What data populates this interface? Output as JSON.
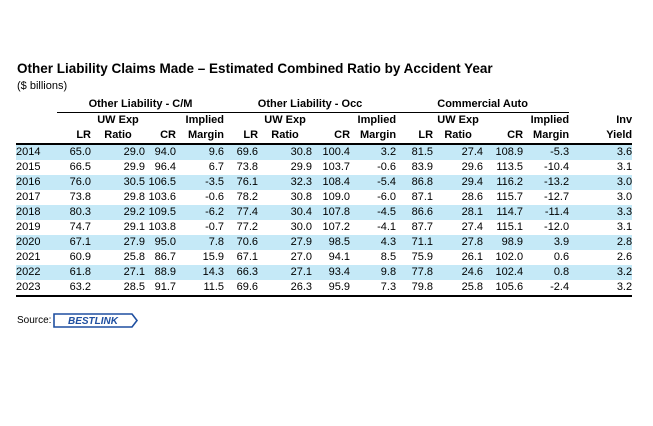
{
  "title": "Other Liability Claims Made – Estimated Combined Ratio by Accident Year",
  "subtitle": "($ billions)",
  "groups": {
    "g1": "Other Liability - C/M",
    "g2": "Other Liability - Occ",
    "g3": "Commercial Auto"
  },
  "headers": {
    "top": {
      "uw": "UW Exp",
      "implied": "Implied",
      "inv": "Inv"
    },
    "bottom": {
      "lr": "LR",
      "ratio": "Ratio",
      "cr": "CR",
      "margin": "Margin",
      "yield": "Yield"
    }
  },
  "rows": [
    [
      "2014",
      "65.0",
      "29.0",
      "94.0",
      "9.6",
      "69.6",
      "30.8",
      "100.4",
      "3.2",
      "81.5",
      "27.4",
      "108.9",
      "-5.3",
      "3.6"
    ],
    [
      "2015",
      "66.5",
      "29.9",
      "96.4",
      "6.7",
      "73.8",
      "29.9",
      "103.7",
      "-0.6",
      "83.9",
      "29.6",
      "113.5",
      "-10.4",
      "3.1"
    ],
    [
      "2016",
      "76.0",
      "30.5",
      "106.5",
      "-3.5",
      "76.1",
      "32.3",
      "108.4",
      "-5.4",
      "86.8",
      "29.4",
      "116.2",
      "-13.2",
      "3.0"
    ],
    [
      "2017",
      "73.8",
      "29.8",
      "103.6",
      "-0.6",
      "78.2",
      "30.8",
      "109.0",
      "-6.0",
      "87.1",
      "28.6",
      "115.7",
      "-12.7",
      "3.0"
    ],
    [
      "2018",
      "80.3",
      "29.2",
      "109.5",
      "-6.2",
      "77.4",
      "30.4",
      "107.8",
      "-4.5",
      "86.6",
      "28.1",
      "114.7",
      "-11.4",
      "3.3"
    ],
    [
      "2019",
      "74.7",
      "29.1",
      "103.8",
      "-0.7",
      "77.2",
      "30.0",
      "107.2",
      "-4.1",
      "87.7",
      "27.4",
      "115.1",
      "-12.0",
      "3.1"
    ],
    [
      "2020",
      "67.1",
      "27.9",
      "95.0",
      "7.8",
      "70.6",
      "27.9",
      "98.5",
      "4.3",
      "71.1",
      "27.8",
      "98.9",
      "3.9",
      "2.8"
    ],
    [
      "2021",
      "60.9",
      "25.8",
      "86.7",
      "15.9",
      "67.1",
      "27.0",
      "94.1",
      "8.5",
      "75.9",
      "26.1",
      "102.0",
      "0.6",
      "2.6"
    ],
    [
      "2022",
      "61.8",
      "27.1",
      "88.9",
      "14.3",
      "66.3",
      "27.1",
      "93.4",
      "9.8",
      "77.8",
      "24.6",
      "102.4",
      "0.8",
      "3.2"
    ],
    [
      "2023",
      "63.2",
      "28.5",
      "91.7",
      "11.5",
      "69.6",
      "26.3",
      "95.9",
      "7.3",
      "79.8",
      "25.8",
      "105.6",
      "-2.4",
      "3.2"
    ]
  ],
  "source": {
    "label": "Source:",
    "logo_text": "BESTLINK"
  },
  "colors": {
    "band": "#c5e9f7",
    "logo_blue": "#1f4fa0"
  }
}
